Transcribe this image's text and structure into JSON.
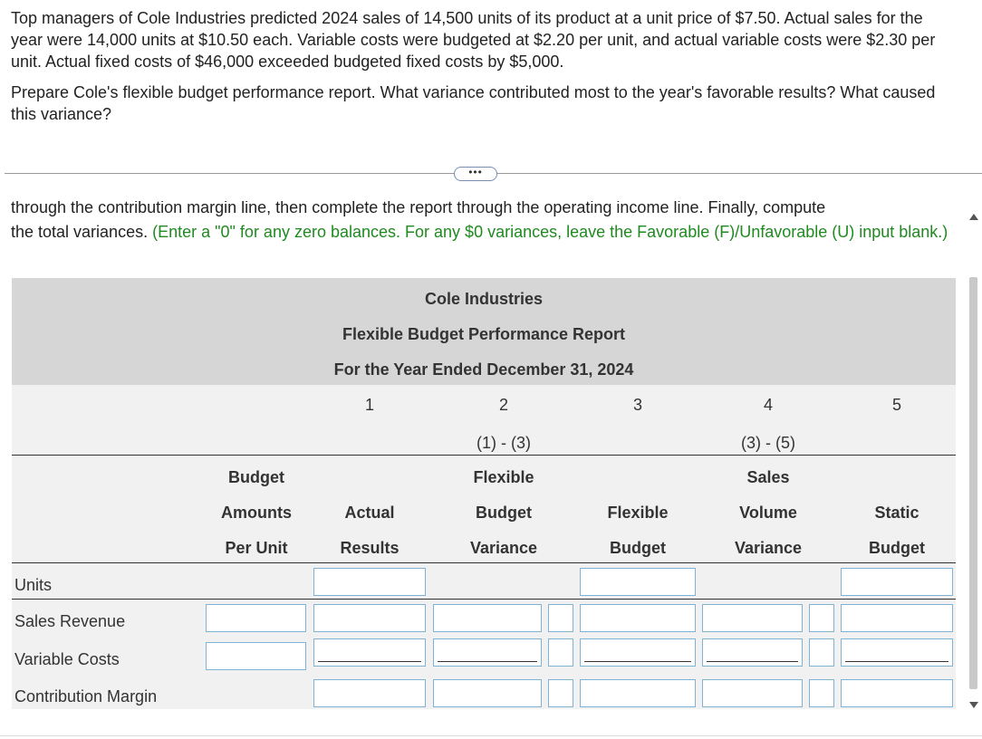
{
  "problem": {
    "paragraph1": "Top managers of Cole Industries predicted 2024 sales of 14,500 units of its product at a unit price of $7.50. Actual sales for the year were 14,000 units at $10.50 each. Variable costs were budgeted at $2.20 per unit, and actual variable costs were $2.30 per unit. Actual fixed costs of $46,000 exceeded budgeted fixed costs by $5,000.",
    "paragraph2": "Prepare Cole's flexible budget performance report. What variance contributed most to the year's favorable results? What caused this variance?"
  },
  "expander": {
    "label": "•••"
  },
  "instructions": {
    "cut_line": "through the contribution margin line, then complete the report through the operating income line. Finally, compute",
    "line2": "the total variances.",
    "green": "(Enter a \"0\" for any zero balances. For any $0 variances, leave the Favorable (F)/Unfavorable (U) input blank.)"
  },
  "report": {
    "company": "Cole Industries",
    "title": "Flexible Budget Performance Report",
    "period": "For the Year Ended December 31, 2024",
    "col_numbers": [
      "1",
      "2",
      "3",
      "4",
      "5"
    ],
    "col_formulas": [
      "(1) - (3)",
      "(3) - (5)"
    ],
    "headers": {
      "budget_per_unit": [
        "Budget",
        "Amounts",
        "Per Unit"
      ],
      "actual": [
        "Actual",
        "Results"
      ],
      "flex_var": [
        "Flexible",
        "Budget",
        "Variance"
      ],
      "flex": [
        "Flexible",
        "Budget"
      ],
      "sales_var": [
        "Sales",
        "Volume",
        "Variance"
      ],
      "static": [
        "Static",
        "Budget"
      ]
    },
    "rows": [
      "Units",
      "Sales Revenue",
      "Variable Costs",
      "Contribution Margin"
    ]
  }
}
